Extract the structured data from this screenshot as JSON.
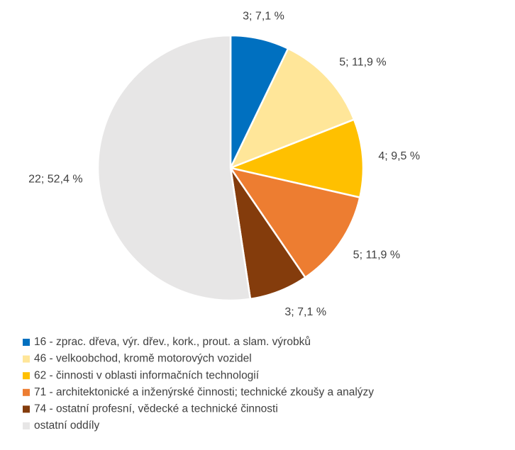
{
  "chart_data": {
    "type": "pie",
    "categories": [
      "16 - zprac. dřeva, výr. dřev., kork., prout. a slam. výrobků",
      "46 - velkoobchod, kromě motorových vozidel",
      "62 - činnosti v oblasti informačních technologií",
      "71 - architektonické a inženýrské činnosti; technické zkoušy a analýzy",
      "74 - ostatní profesní, vědecké a technické činnosti",
      "ostatní oddíly"
    ],
    "values": [
      3,
      5,
      4,
      5,
      3,
      22
    ],
    "value_labels": [
      "3; 7,1 %",
      "5; 11,9 %",
      "4; 9,5 %",
      "5; 11,9 %",
      "3; 7,1 %",
      "22;  52,4 %"
    ],
    "colors": [
      "#0070c0",
      "#ffe699",
      "#ffc000",
      "#ed7d31",
      "#843c0c",
      "#e7e6e6"
    ],
    "legend": "bottom"
  }
}
